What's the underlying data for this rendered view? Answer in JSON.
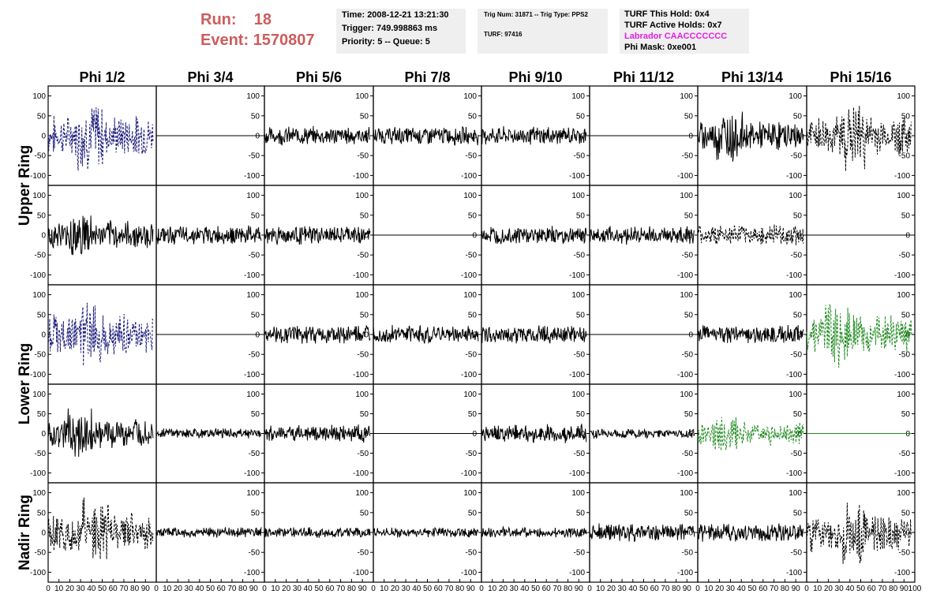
{
  "header": {
    "run_label": "Run:",
    "run_value": "18",
    "event_label": "Event:",
    "event_value": "1570807",
    "time": "Time: 2008-12-21 13:21:30",
    "trigger": "Trigger: 749.998863 ms",
    "priority": "Priority: 5 -- Queue: 5",
    "trig_num": "Trig Num: 31871 -- Trig Type: PPS2",
    "turf": "TURF: 97416",
    "turf_this_hold": "TURF This Hold: 0x4",
    "turf_active_holds": "TURF Active Holds: 0x7",
    "labrador": "Labrador CAACCCCCCC",
    "phi_mask": "Phi Mask: 0xe001"
  },
  "colors": {
    "run_info": "#cd5c5c",
    "blue": "#1a1a7a",
    "green": "#1f8a1f",
    "black": "#000000",
    "magenta": "#e21ee2",
    "info_box": "#efefef"
  },
  "chart_data": {
    "type": "line",
    "columns": [
      "Phi 1/2",
      "Phi 3/4",
      "Phi 5/6",
      "Phi 7/8",
      "Phi 9/10",
      "Phi 11/12",
      "Phi 13/14",
      "Phi 15/16"
    ],
    "ring_labels": [
      "Upper Ring",
      "Lower Ring",
      "Nadir Ring"
    ],
    "xlim": [
      0,
      100
    ],
    "ylim": [
      -125,
      125
    ],
    "xticks": [
      0,
      10,
      20,
      30,
      40,
      50,
      60,
      70,
      80,
      90,
      100
    ],
    "xtick_labels": [
      "0",
      "10",
      "20",
      "30",
      "40",
      "50",
      "60",
      "70",
      "80",
      "90",
      "100"
    ],
    "yticks": [
      100,
      50,
      0,
      -50,
      -100
    ],
    "ytick_labels": [
      "100",
      "50",
      "0",
      "-50",
      "-100"
    ],
    "x_range_of_waveforms": [
      0,
      97
    ],
    "panels": [
      [
        "blue-dashed-large",
        "flat",
        "noise-medium",
        "noise-medium",
        "noise-medium",
        "flat",
        "noise-large",
        "black-dashed-large"
      ],
      [
        "noise-large",
        "noise-medium",
        "noise-medium",
        "flat",
        "noise-medium",
        "noise-medium",
        "black-dashed-medium",
        "flat"
      ],
      [
        "blue-dashed-large",
        "flat",
        "noise-medium",
        "noise-medium",
        "noise-medium",
        "flat",
        "noise-medium",
        "green-dashed-large"
      ],
      [
        "noise-large",
        "noise-small",
        "noise-medium",
        "flat",
        "noise-medium",
        "noise-small",
        "green-dashed-medium",
        "flat-green"
      ],
      [
        "black-dashed-large",
        "noise-small",
        "noise-small",
        "noise-small",
        "noise-small",
        "noise-medium",
        "noise-medium",
        "black-dashed-large"
      ]
    ]
  }
}
